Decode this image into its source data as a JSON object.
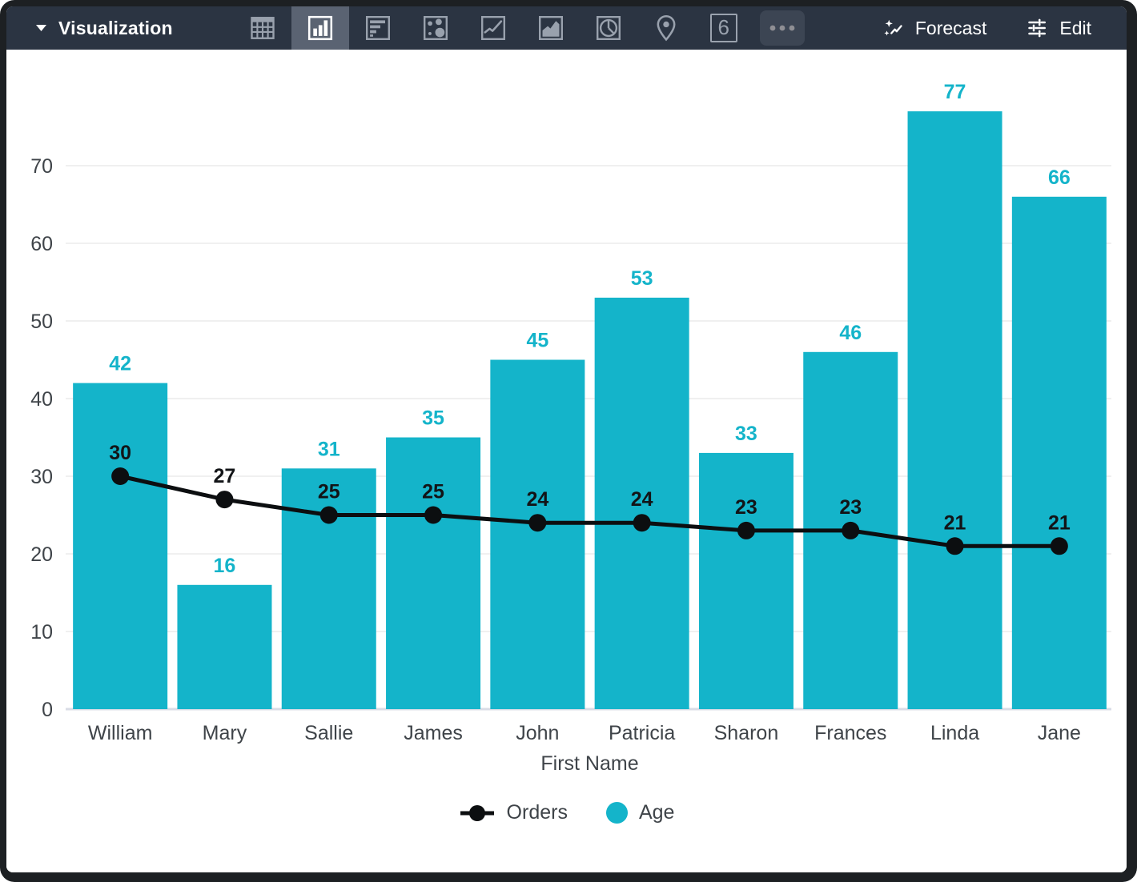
{
  "toolbar": {
    "title": "Visualization",
    "six_glyph": "6",
    "forecast_label": "Forecast",
    "edit_label": "Edit",
    "icon_names": [
      "table",
      "column-chart",
      "bar-chart",
      "scatter",
      "line-chart",
      "area-chart",
      "pie-chart",
      "map",
      "single-value",
      "more-options"
    ],
    "selected_chart_type": "column-chart"
  },
  "colors": {
    "accent_teal": "#14b4ca",
    "line_black": "#0c0e10",
    "toolbar_bg": "#2b3442",
    "toolbar_selected_bg": "#5a6372",
    "icon_gray": "#99a1ad",
    "axis_text": "#3f4449",
    "gridline": "#ebebeb",
    "baseline": "#d9dce6"
  },
  "chart_data": {
    "type": "combo",
    "categories": [
      "William",
      "Mary",
      "Sallie",
      "James",
      "John",
      "Patricia",
      "Sharon",
      "Frances",
      "Linda",
      "Jane"
    ],
    "series": [
      {
        "name": "Orders",
        "type": "line",
        "color": "#0c0e10",
        "values": [
          30,
          27,
          25,
          25,
          24,
          24,
          23,
          23,
          21,
          21
        ]
      },
      {
        "name": "Age",
        "type": "bar",
        "color": "#14b4ca",
        "values": [
          42,
          16,
          31,
          35,
          45,
          53,
          33,
          46,
          77,
          66
        ]
      }
    ],
    "xlabel": "First Name",
    "y_ticks": [
      0,
      10,
      20,
      30,
      40,
      50,
      60,
      70
    ],
    "ylim": [
      0,
      80
    ],
    "grid": true,
    "legend_position": "bottom",
    "data_labels": true
  }
}
